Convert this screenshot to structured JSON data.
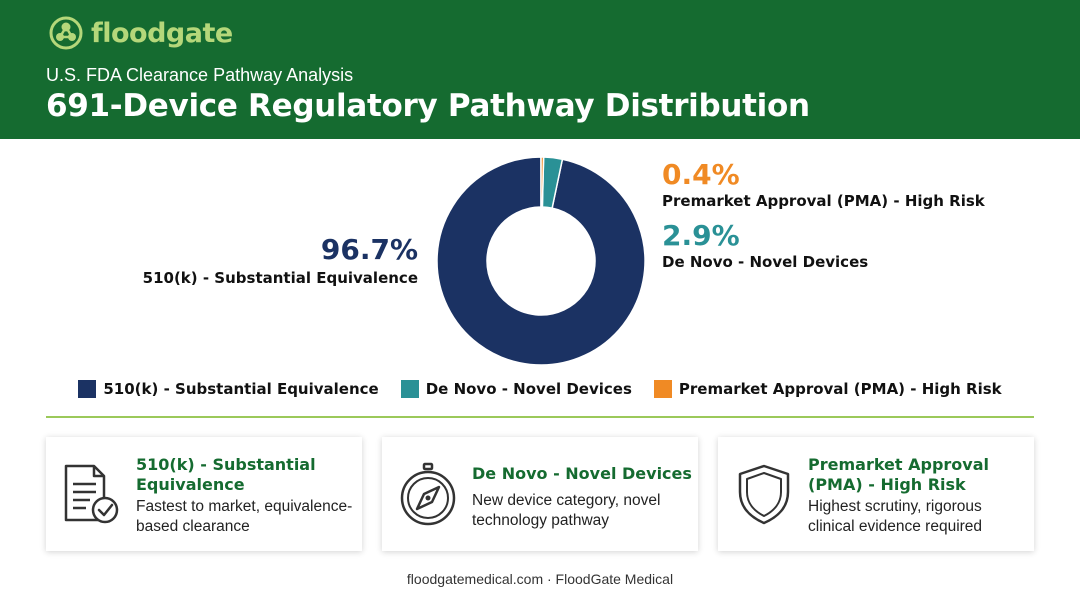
{
  "brand": {
    "name": "floodgate",
    "color": "#b5d77a",
    "header_color": "#156b30"
  },
  "header": {
    "subtitle": "U.S. FDA Clearance Pathway Analysis",
    "title": "691-Device Regulatory Pathway Distribution"
  },
  "chart_data": {
    "type": "pie",
    "donut": true,
    "title": "",
    "categories": [
      "510(k) - Substantial Equivalence",
      "De Novo - Novel Devices",
      "Premarket Approval (PMA) - High Risk"
    ],
    "values": [
      96.7,
      2.9,
      0.4
    ],
    "value_labels": [
      "96.7%",
      "2.9%",
      "0.4%"
    ],
    "colors": [
      "#1b3263",
      "#2a9196",
      "#f08a24"
    ],
    "legend_position": "bottom"
  },
  "cards": [
    {
      "icon": "document-check-icon",
      "title": "510(k) - Substantial Equivalence",
      "desc": "Fastest to market, equivalence-based clearance"
    },
    {
      "icon": "compass-icon",
      "title": "De Novo - Novel Devices",
      "desc": "New device category, novel technology pathway"
    },
    {
      "icon": "shield-icon",
      "title": "Premarket Approval (PMA) - High Risk",
      "desc": "Highest scrutiny, rigorous clinical evidence required"
    }
  ],
  "footer": {
    "text": "floodgatemedical.com · FloodGate Medical"
  }
}
